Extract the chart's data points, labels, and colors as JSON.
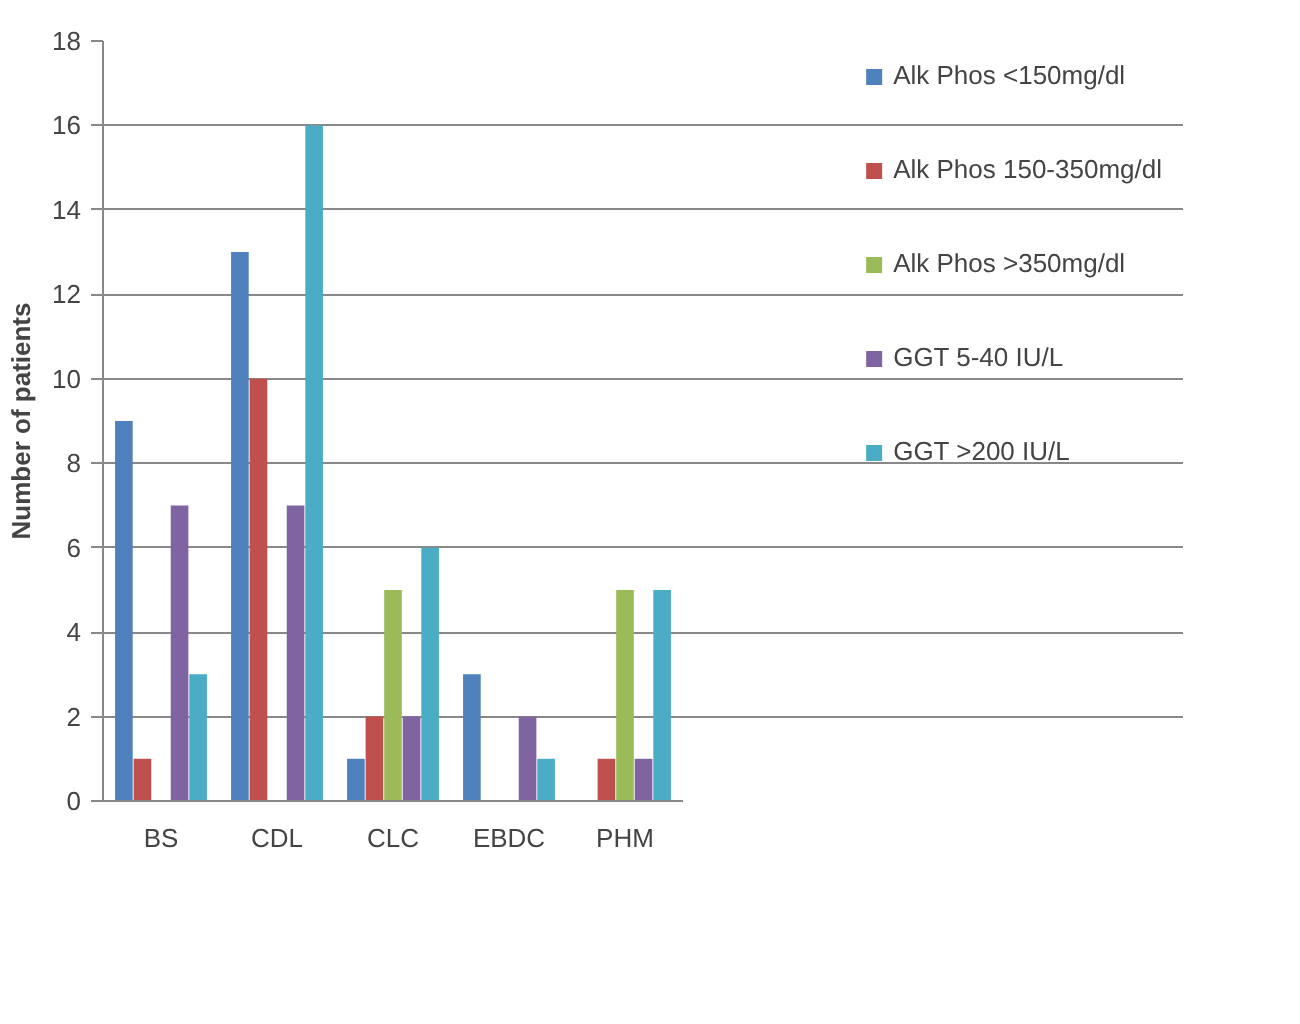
{
  "chart_data": {
    "type": "bar",
    "ylabel": "Number of patients",
    "categories": [
      "BS",
      "CDL",
      "CLC",
      "EBDC",
      "PHM"
    ],
    "series": [
      {
        "name": "Alk Phos <150mg/dl",
        "color": "#4f81bd",
        "values": [
          9,
          13,
          1,
          3,
          0
        ]
      },
      {
        "name": "Alk Phos 150-350mg/dl",
        "color": "#c0504d",
        "values": [
          1,
          10,
          2,
          0,
          1
        ]
      },
      {
        "name": "Alk Phos >350mg/dl",
        "color": "#9bbb59",
        "values": [
          0,
          0,
          5,
          0,
          5
        ]
      },
      {
        "name": "GGT 5-40 IU/L",
        "color": "#8064a2",
        "values": [
          7,
          7,
          2,
          2,
          1
        ]
      },
      {
        "name": "GGT >200 IU/L",
        "color": "#4bacc6",
        "values": [
          3,
          16,
          6,
          1,
          5
        ]
      }
    ],
    "ylim": [
      0,
      18
    ],
    "yticks": [
      0,
      2,
      4,
      6,
      8,
      10,
      12,
      14,
      16,
      18
    ],
    "grid": "y",
    "legend": "right"
  }
}
